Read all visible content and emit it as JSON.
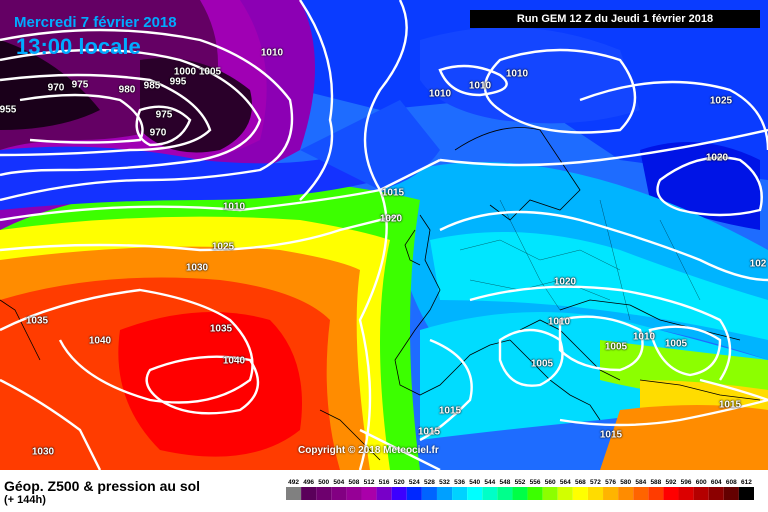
{
  "header": {
    "date": "Mercredi 7 février 2018",
    "time": "13:00 locale",
    "run": "Run GEM 12 Z du Jeudi 1 février 2018"
  },
  "copyright": "Copyright © 2018 Meteociel.fr",
  "footer": {
    "title": "Géop. Z500 & pression au sol",
    "subtitle": "(+ 144h)"
  },
  "scale": {
    "labels": [
      "492",
      "496",
      "500",
      "504",
      "508",
      "512",
      "516",
      "520",
      "524",
      "528",
      "532",
      "536",
      "540",
      "544",
      "548",
      "552",
      "556",
      "560",
      "564",
      "568",
      "572",
      "576",
      "580",
      "584",
      "588",
      "592",
      "596",
      "600",
      "604",
      "608",
      "612"
    ],
    "colors": [
      "#808080",
      "#5a005a",
      "#6e006e",
      "#820082",
      "#960096",
      "#aa00aa",
      "#7800c8",
      "#3c00ff",
      "#0028ff",
      "#0064ff",
      "#00a0ff",
      "#00d2ff",
      "#00ffff",
      "#00ffc8",
      "#00ff8c",
      "#00ff46",
      "#3cff00",
      "#8cff00",
      "#d2ff00",
      "#ffff00",
      "#ffdc00",
      "#ffb400",
      "#ff8c00",
      "#ff6400",
      "#ff3c00",
      "#ff0000",
      "#dc0000",
      "#b40000",
      "#8c0000",
      "#640000",
      "#000000"
    ]
  },
  "isobars": [
    "1010",
    "1005",
    "1000",
    "995",
    "985",
    "980",
    "975",
    "970",
    "955",
    "975",
    "970",
    "1010",
    "1010",
    "1010",
    "1010",
    "1025",
    "1020",
    "1015",
    "1020",
    "1010",
    "1025",
    "1030",
    "1035",
    "1040",
    "1035",
    "1040",
    "1020",
    "1010",
    "1010",
    "1005",
    "1005",
    "1005",
    "1015",
    "1015",
    "1015",
    "1030",
    "1015",
    "102"
  ]
}
